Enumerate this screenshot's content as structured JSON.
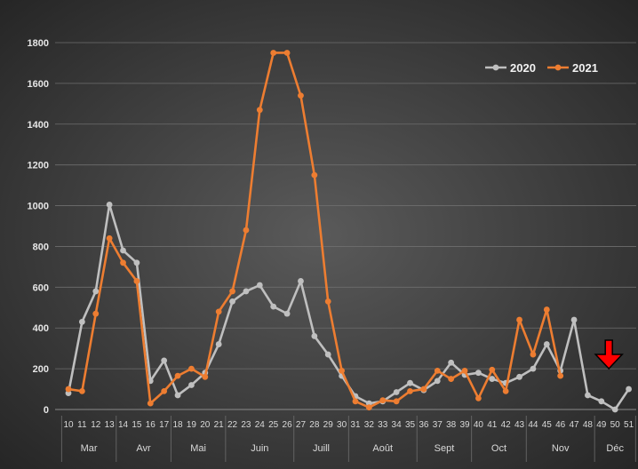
{
  "chart_data": {
    "type": "line",
    "title": "",
    "xlabel": "",
    "ylabel": "",
    "ylim": [
      0,
      1800
    ],
    "yticks": [
      "0",
      "200",
      "400",
      "600",
      "800",
      "1000",
      "1200",
      "1400",
      "1600",
      "1800"
    ],
    "grid": "horizontal",
    "legend_position": "top-right",
    "x": [
      "10",
      "11",
      "12",
      "13",
      "14",
      "15",
      "16",
      "17",
      "18",
      "19",
      "20",
      "21",
      "22",
      "23",
      "24",
      "25",
      "26",
      "27",
      "28",
      "29",
      "30",
      "31",
      "32",
      "33",
      "34",
      "35",
      "36",
      "37",
      "38",
      "39",
      "40",
      "41",
      "42",
      "43",
      "44",
      "45",
      "46",
      "47",
      "48",
      "49",
      "50",
      "51"
    ],
    "months": [
      {
        "label": "Mar",
        "from": 0,
        "to": 3
      },
      {
        "label": "Avr",
        "from": 4,
        "to": 7
      },
      {
        "label": "Mai",
        "from": 8,
        "to": 11
      },
      {
        "label": "Juin",
        "from": 12,
        "to": 16
      },
      {
        "label": "Juill",
        "from": 17,
        "to": 20
      },
      {
        "label": "Août",
        "from": 21,
        "to": 25
      },
      {
        "label": "Sept",
        "from": 26,
        "to": 29
      },
      {
        "label": "Oct",
        "from": 30,
        "to": 33
      },
      {
        "label": "Nov",
        "from": 34,
        "to": 38
      },
      {
        "label": "Déc",
        "from": 39,
        "to": 41
      }
    ],
    "series": [
      {
        "name": "2020",
        "color": "#bfbfbf",
        "values": [
          80,
          430,
          580,
          1005,
          780,
          720,
          140,
          240,
          70,
          120,
          180,
          320,
          530,
          580,
          610,
          505,
          470,
          630,
          360,
          270,
          165,
          65,
          30,
          40,
          85,
          130,
          95,
          140,
          230,
          170,
          180,
          150,
          130,
          160,
          200,
          320,
          190,
          440,
          70,
          40,
          0,
          100
        ]
      },
      {
        "name": "2021",
        "color": "#ed7d31",
        "values": [
          100,
          90,
          470,
          840,
          720,
          630,
          30,
          90,
          165,
          200,
          160,
          480,
          580,
          880,
          1470,
          1750,
          1750,
          1540,
          1150,
          530,
          190,
          40,
          10,
          45,
          40,
          90,
          100,
          190,
          150,
          190,
          55,
          195,
          90,
          440,
          270,
          490,
          165,
          null,
          null,
          null,
          null,
          null
        ]
      }
    ],
    "annotation": {
      "type": "arrow",
      "icon": "red-down-arrow-icon",
      "color": "#ff0000",
      "target_x": "50"
    }
  }
}
